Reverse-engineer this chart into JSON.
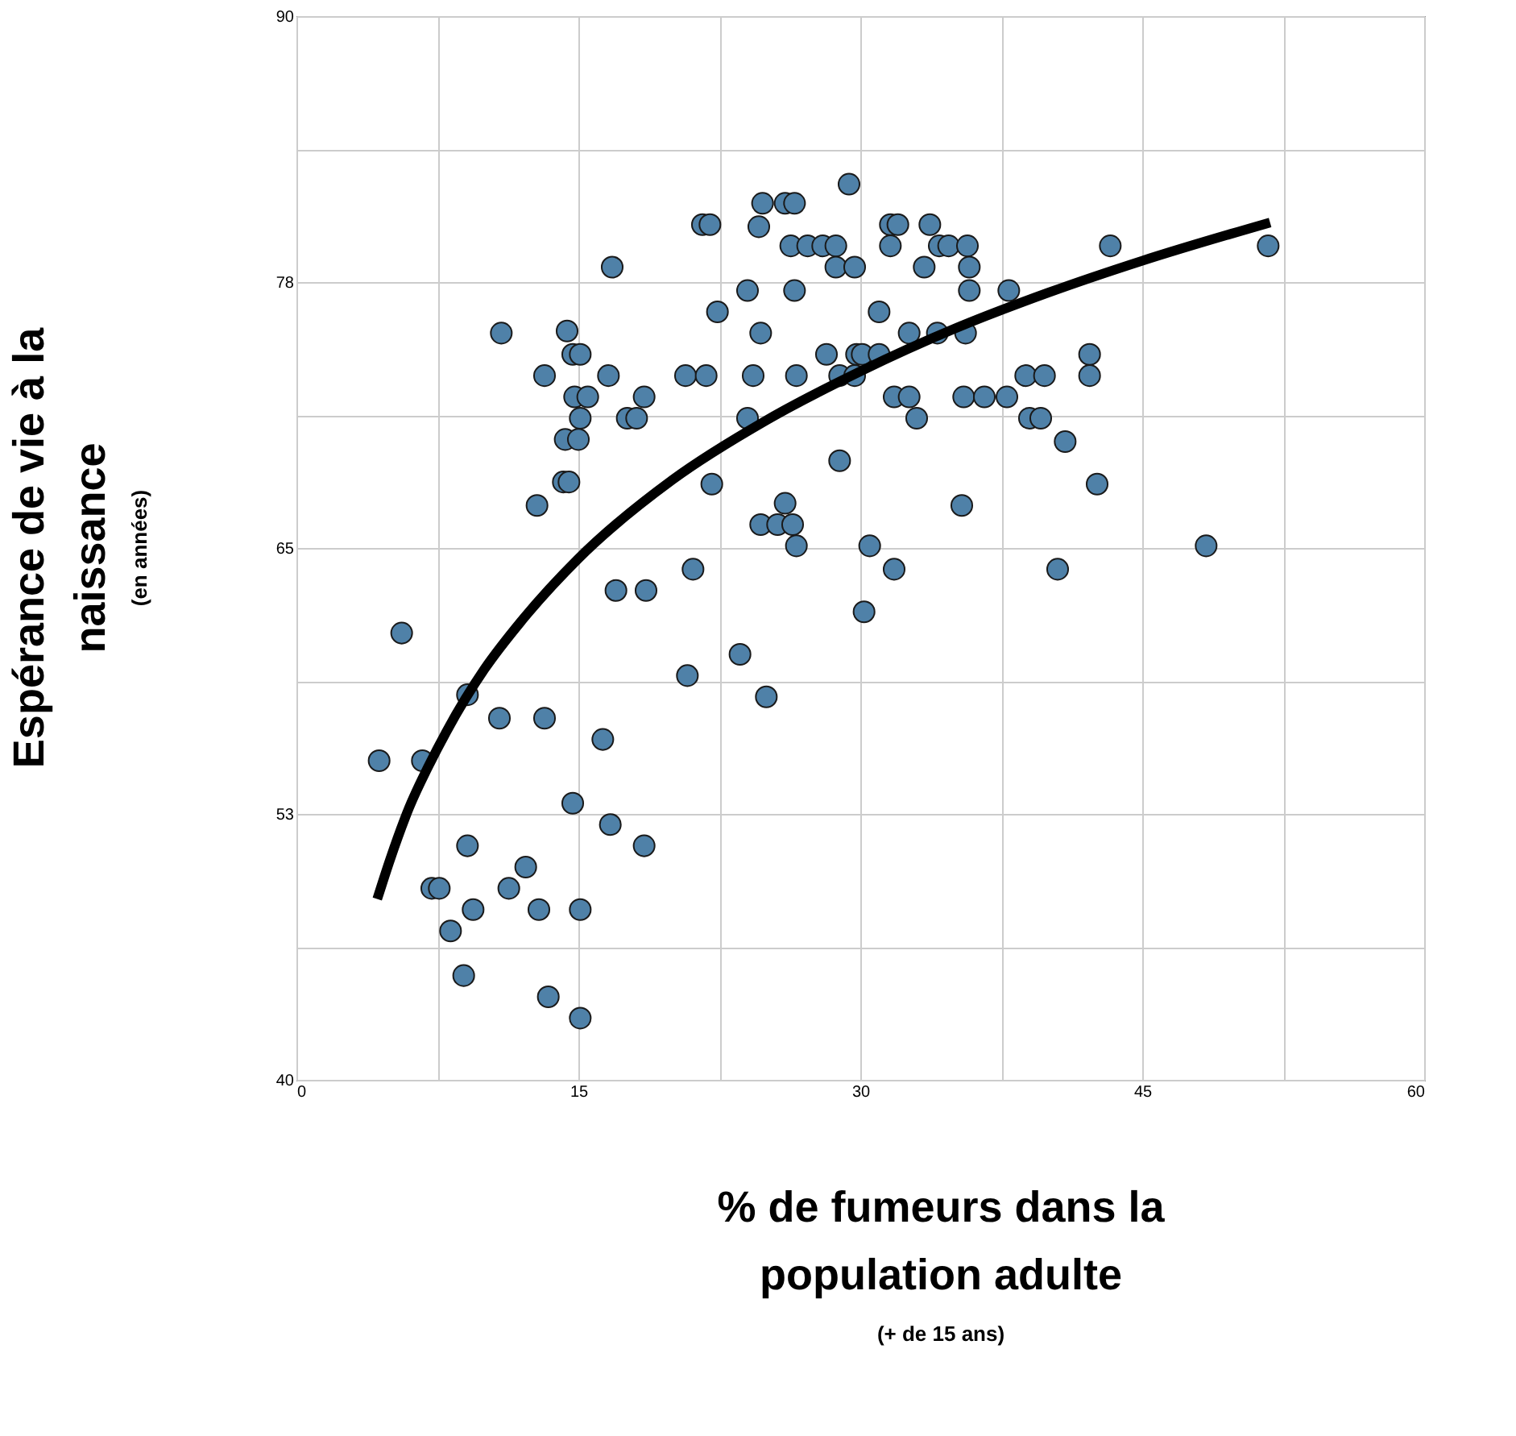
{
  "chart_data": {
    "type": "scatter",
    "xlabel": "% de fumeurs dans la population adulte",
    "ylabel": "Espérance de vie à la naissance",
    "annotations": [
      "(en années)",
      "(+ de 15 ans)"
    ],
    "xlim": [
      0,
      60
    ],
    "ylim": [
      40,
      90
    ],
    "xticks": [
      0,
      {
        "value": 7.5,
        "label": null
      },
      15,
      {
        "value": 22.5,
        "label": null
      },
      30,
      {
        "value": 37.5,
        "label": null
      },
      45,
      {
        "value": 52.5,
        "label": null
      },
      60
    ],
    "yticks": [
      40,
      {
        "value": 46.25,
        "label": null
      },
      {
        "value": 52.5,
        "label": "53"
      },
      {
        "value": 58.75,
        "label": null
      },
      65,
      {
        "value": 71.25,
        "label": null
      },
      {
        "value": 77.5,
        "label": "78"
      },
      {
        "value": 83.75,
        "label": null
      },
      90
    ],
    "grid": true,
    "series": [
      {
        "marker": "circle",
        "color": "#4f81a8",
        "x": [
          5.6,
          23.6,
          20.8,
          25.0,
          9.1,
          10.8,
          13.2,
          16.3,
          4.4,
          6.7,
          14.7,
          16.7,
          18.5,
          9.1,
          12.2,
          7.2,
          7.6,
          11.3,
          9.4,
          12.9,
          15.1,
          8.2,
          8.9,
          13.4,
          15.1,
          29.4,
          24.8,
          26.0,
          26.5,
          21.6,
          22.0,
          24.6,
          26.3,
          27.2,
          28.0,
          28.7,
          28.7,
          29.7,
          16.8,
          24.0,
          26.5,
          22.4,
          10.9,
          14.4,
          24.7,
          14.7,
          15.1,
          28.2,
          29.8,
          13.2,
          16.6,
          20.7,
          21.8,
          24.3,
          26.6,
          28.9,
          14.8,
          15.5,
          18.5,
          15.1,
          17.6,
          18.1,
          24.0,
          14.3,
          15.0,
          28.9,
          14.2,
          14.5,
          22.1,
          12.8,
          26.0,
          24.7,
          25.6,
          26.4,
          26.6,
          21.1,
          17.0,
          18.6,
          30.2,
          31.6,
          32.0,
          33.7,
          31.6,
          34.2,
          34.7,
          35.7,
          43.3,
          51.7,
          33.4,
          35.8,
          35.8,
          37.9,
          31.0,
          32.6,
          34.1,
          35.6,
          30.1,
          31.0,
          42.2,
          29.7,
          38.8,
          39.8,
          42.2,
          31.8,
          32.6,
          35.5,
          36.6,
          37.8,
          33.0,
          39.0,
          39.6,
          40.9,
          42.6,
          35.4,
          30.5,
          48.4,
          31.8,
          40.5
        ],
        "values": [
          61.0,
          60.0,
          59.0,
          58.0,
          58.1,
          57.0,
          57.0,
          56.0,
          55.0,
          55.0,
          53.0,
          52.0,
          51.0,
          51.0,
          50.0,
          49.0,
          49.0,
          49.0,
          48.0,
          48.0,
          48.0,
          47.0,
          44.9,
          43.9,
          42.9,
          82.1,
          81.2,
          81.2,
          81.2,
          80.2,
          80.2,
          80.1,
          79.2,
          79.2,
          79.2,
          79.2,
          78.2,
          78.2,
          78.2,
          77.1,
          77.1,
          76.1,
          75.1,
          75.2,
          75.1,
          74.1,
          74.1,
          74.1,
          74.1,
          73.1,
          73.1,
          73.1,
          73.1,
          73.1,
          73.1,
          73.1,
          72.1,
          72.1,
          72.1,
          71.1,
          71.1,
          71.1,
          71.1,
          70.1,
          70.1,
          69.1,
          68.1,
          68.1,
          68.0,
          67.0,
          67.1,
          66.1,
          66.1,
          66.1,
          65.1,
          64.0,
          63.0,
          63.0,
          62.0,
          80.2,
          80.2,
          80.2,
          79.2,
          79.2,
          79.2,
          79.2,
          79.2,
          79.2,
          78.2,
          78.2,
          77.1,
          77.1,
          76.1,
          75.1,
          75.1,
          75.1,
          74.1,
          74.1,
          74.1,
          73.1,
          73.1,
          73.1,
          73.1,
          72.1,
          72.1,
          72.1,
          72.1,
          72.1,
          71.1,
          71.1,
          71.1,
          70.0,
          68.0,
          67.0,
          65.1,
          65.1,
          64.0,
          64.0
        ]
      },
      {
        "type": "line",
        "marker": "none",
        "color": "#000000",
        "line_style": "solid",
        "x": [
          4.3,
          5,
          6,
          7,
          8,
          10,
          12,
          15,
          20,
          25,
          30,
          35,
          40,
          45,
          51.8
        ],
        "values": [
          48.5,
          50.4,
          52.8,
          54.7,
          56.4,
          59.3,
          61.6,
          64.5,
          68.2,
          71.0,
          73.3,
          75.3,
          77.0,
          78.5,
          80.3
        ]
      }
    ]
  }
}
